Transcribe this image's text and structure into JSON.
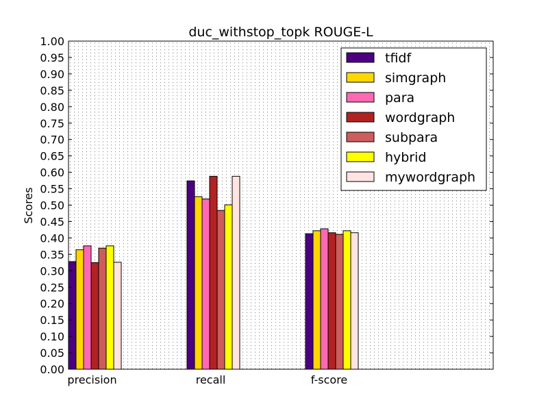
{
  "chart_data": {
    "type": "bar",
    "title": "duc_withstop_topk ROUGE-L",
    "xlabel": "",
    "ylabel": "Scores",
    "ylim": [
      0,
      1.0
    ],
    "yticks": [
      "0.00",
      "0.05",
      "0.10",
      "0.15",
      "0.20",
      "0.25",
      "0.30",
      "0.35",
      "0.40",
      "0.45",
      "0.50",
      "0.55",
      "0.60",
      "0.65",
      "0.70",
      "0.75",
      "0.80",
      "0.85",
      "0.90",
      "0.95",
      "1.00"
    ],
    "categories": [
      "precision",
      "recall",
      "f-score"
    ],
    "grid": true,
    "legend_position": "top-right",
    "series": [
      {
        "name": "tfidf",
        "color": "#4b0082",
        "values": [
          0.328,
          0.574,
          0.413
        ]
      },
      {
        "name": "simgraph",
        "color": "#ffd700",
        "values": [
          0.364,
          0.526,
          0.422
        ]
      },
      {
        "name": "para",
        "color": "#ff69b4",
        "values": [
          0.376,
          0.519,
          0.428
        ]
      },
      {
        "name": "wordgraph",
        "color": "#b22222",
        "values": [
          0.325,
          0.588,
          0.416
        ]
      },
      {
        "name": "subpara",
        "color": "#cd5c5c",
        "values": [
          0.369,
          0.484,
          0.411
        ]
      },
      {
        "name": "hybrid",
        "color": "#ffff00",
        "values": [
          0.376,
          0.501,
          0.422
        ]
      },
      {
        "name": "mywordgraph",
        "color": "#ffe4e1",
        "values": [
          0.326,
          0.588,
          0.416
        ]
      }
    ]
  }
}
